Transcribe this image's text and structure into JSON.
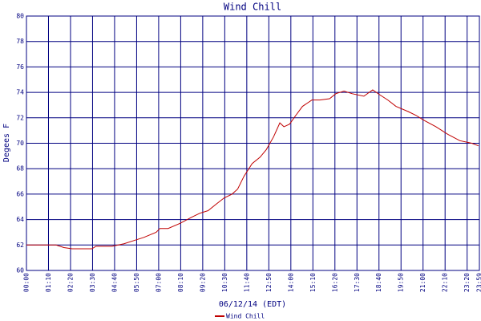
{
  "chart_data": {
    "type": "line",
    "title": "Wind Chill",
    "x_label": "06/12/14 (EDT)",
    "y_label": "Degees F",
    "x": [
      0,
      94,
      119,
      145,
      208,
      221,
      272,
      310,
      335,
      373,
      412,
      424,
      450,
      488,
      526,
      551,
      577,
      602,
      628,
      653,
      671,
      691,
      717,
      742,
      762,
      785,
      805,
      818,
      836,
      856,
      877,
      907,
      932,
      963,
      983,
      1009,
      1034,
      1072,
      1100,
      1123,
      1148,
      1174,
      1212,
      1237,
      1263,
      1301,
      1339,
      1377,
      1415,
      1436
    ],
    "series": [
      {
        "name": "Wind Chill",
        "color": "#c00000",
        "values": [
          62.0,
          62.0,
          61.8,
          61.7,
          61.7,
          61.9,
          61.9,
          62.1,
          62.3,
          62.6,
          63.0,
          63.3,
          63.3,
          63.7,
          64.2,
          64.5,
          64.7,
          65.2,
          65.7,
          66.0,
          66.4,
          67.4,
          68.4,
          68.9,
          69.5,
          70.5,
          71.6,
          71.3,
          71.5,
          72.2,
          72.9,
          73.4,
          73.4,
          73.5,
          73.9,
          74.1,
          73.9,
          73.7,
          74.2,
          73.8,
          73.4,
          72.9,
          72.5,
          72.2,
          71.8,
          71.3,
          70.7,
          70.2,
          70.0,
          69.8
        ]
      }
    ],
    "xlim": [
      0,
      1439
    ],
    "xticks": [
      {
        "value": 0,
        "label": "00:00"
      },
      {
        "value": 70,
        "label": "01:10"
      },
      {
        "value": 140,
        "label": "02:20"
      },
      {
        "value": 210,
        "label": "03:30"
      },
      {
        "value": 280,
        "label": "04:40"
      },
      {
        "value": 350,
        "label": "05:50"
      },
      {
        "value": 420,
        "label": "07:00"
      },
      {
        "value": 490,
        "label": "08:10"
      },
      {
        "value": 560,
        "label": "09:20"
      },
      {
        "value": 630,
        "label": "10:30"
      },
      {
        "value": 700,
        "label": "11:40"
      },
      {
        "value": 770,
        "label": "12:50"
      },
      {
        "value": 840,
        "label": "14:00"
      },
      {
        "value": 910,
        "label": "15:10"
      },
      {
        "value": 980,
        "label": "16:20"
      },
      {
        "value": 1050,
        "label": "17:30"
      },
      {
        "value": 1120,
        "label": "18:40"
      },
      {
        "value": 1190,
        "label": "19:50"
      },
      {
        "value": 1260,
        "label": "21:00"
      },
      {
        "value": 1330,
        "label": "22:10"
      },
      {
        "value": 1400,
        "label": "23:20"
      },
      {
        "value": 1439,
        "label": "23:59"
      }
    ],
    "ylim": [
      60,
      80
    ],
    "yticks": [
      60,
      62,
      64,
      66,
      68,
      70,
      72,
      74,
      76,
      78,
      80
    ],
    "grid": true
  }
}
